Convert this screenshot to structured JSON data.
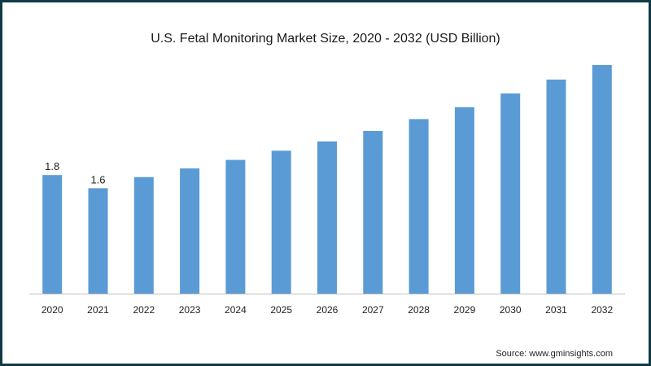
{
  "chart_data": {
    "type": "bar",
    "title": "U.S. Fetal Monitoring Market Size, 2020 - 2032 (USD Billion)",
    "xlabel": "",
    "ylabel": "",
    "categories": [
      "2020",
      "2021",
      "2022",
      "2023",
      "2024",
      "2025",
      "2026",
      "2027",
      "2028",
      "2029",
      "2030",
      "2031",
      "2032"
    ],
    "values": [
      1.8,
      1.6,
      1.77,
      1.9,
      2.03,
      2.17,
      2.31,
      2.47,
      2.65,
      2.83,
      3.04,
      3.25,
      3.47
    ],
    "data_labels": [
      "1.8",
      "1.6",
      null,
      null,
      null,
      null,
      null,
      null,
      null,
      null,
      null,
      null,
      null
    ],
    "ylim": [
      0,
      3.47
    ],
    "grid": false,
    "legend": "none",
    "bar_color": "#5b9bd5",
    "axis_color": "#bfbfbf"
  },
  "source": "Source: www.gminsights.com",
  "frame_color": "#0f3b45"
}
